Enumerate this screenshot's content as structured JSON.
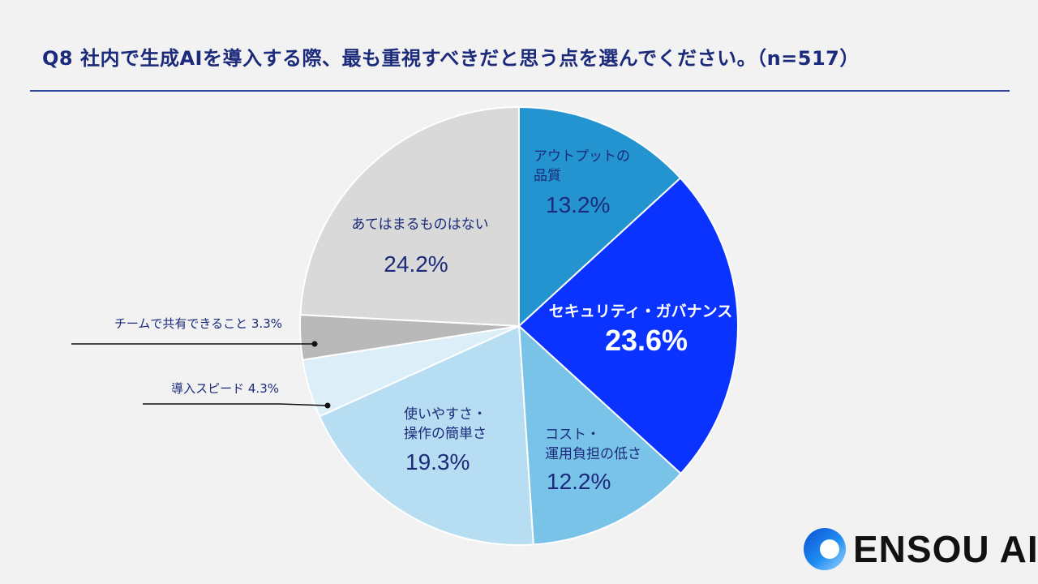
{
  "chart_data": {
    "type": "pie",
    "title": "Q8 社内で生成AIを導入する際、最も重視すべきだと思う点を選んでください。（n=517）",
    "start_angle_deg": 0,
    "direction": "clockwise",
    "slices": [
      {
        "label_lines": [
          "アウトプットの",
          "品質"
        ],
        "value": 13.2,
        "value_label": "13.2%",
        "color": "#2394cf",
        "text_color": "#1b2a7a",
        "label_weight": "normal"
      },
      {
        "label_lines": [
          "セキュリティ・ガバナンス"
        ],
        "value": 23.6,
        "value_label": "23.6%",
        "color": "#0a33ff",
        "text_color": "#ffffff",
        "label_weight": "bold"
      },
      {
        "label_lines": [
          "コスト・",
          "運用負担の低さ"
        ],
        "value": 12.2,
        "value_label": "12.2%",
        "color": "#7ac3e8",
        "text_color": "#1b2a7a",
        "label_weight": "normal"
      },
      {
        "label_lines": [
          "使いやすさ・",
          "操作の簡単さ"
        ],
        "value": 19.3,
        "value_label": "19.3%",
        "color": "#b6ddf2",
        "text_color": "#1b2a7a",
        "label_weight": "normal"
      },
      {
        "label_lines": [
          "導入スピード"
        ],
        "value": 4.3,
        "value_label": "4.3%",
        "color": "#dceef8",
        "text_color": "#1b2a7a",
        "label_weight": "normal",
        "external": true
      },
      {
        "label_lines": [
          "チームで共有できること"
        ],
        "value": 3.3,
        "value_label": "3.3%",
        "color": "#b9b9b9",
        "text_color": "#1b2a7a",
        "label_weight": "normal",
        "external": true
      },
      {
        "label_lines": [
          "あてはまるものはない"
        ],
        "value": 24.2,
        "value_label": "24.2%",
        "color": "#d9d9d9",
        "text_color": "#1b2a7a",
        "label_weight": "normal"
      }
    ]
  },
  "brand": {
    "name": "ENSOU AI",
    "accent": "#1a66e6"
  }
}
